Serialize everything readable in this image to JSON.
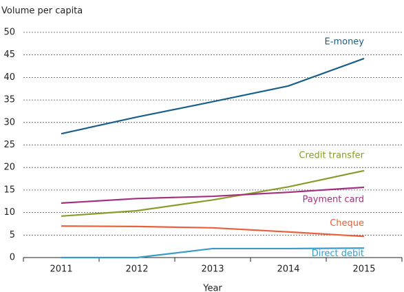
{
  "chart_data": {
    "type": "line",
    "y_label": "Volume per capita",
    "x_label": "Year",
    "categories": [
      "2011",
      "2012",
      "2013",
      "2014",
      "2015"
    ],
    "series": [
      {
        "name": "E-money",
        "color": "#1a5f87",
        "values": [
          27.5,
          31.2,
          34.6,
          38.1,
          44.2
        ]
      },
      {
        "name": "Credit transfer",
        "color": "#8a9a2b",
        "values": [
          9.2,
          10.4,
          12.8,
          15.7,
          19.3
        ]
      },
      {
        "name": "Payment card",
        "color": "#a2307f",
        "values": [
          12.1,
          13.1,
          13.6,
          14.5,
          15.6
        ]
      },
      {
        "name": "Cheque",
        "color": "#e8603c",
        "values": [
          7.0,
          6.9,
          6.6,
          5.7,
          4.7
        ]
      },
      {
        "name": "Direct debit",
        "color": "#3a9bc8",
        "values": [
          0,
          0,
          2.0,
          2.0,
          2.1
        ]
      }
    ],
    "ylim": [
      0,
      50
    ],
    "yticks": [
      0,
      5,
      10,
      15,
      20,
      25,
      30,
      35,
      40,
      45,
      50
    ],
    "grid": true
  }
}
